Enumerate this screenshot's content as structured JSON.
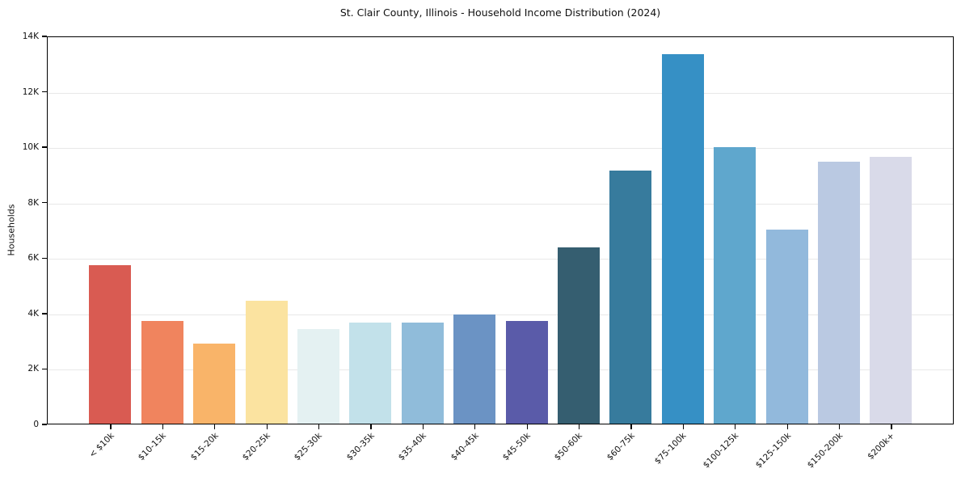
{
  "chart_data": {
    "type": "bar",
    "title": "St. Clair County, Illinois - Household Income Distribution (2024)",
    "xlabel": "",
    "ylabel": "Households",
    "ylim": [
      0,
      14000
    ],
    "grid": "horizontal-light",
    "legend": "none",
    "ytick_labels": [
      "0",
      "2K",
      "4K",
      "6K",
      "8K",
      "10K",
      "12K",
      "14K"
    ],
    "ytick_values": [
      0,
      2000,
      4000,
      6000,
      8000,
      10000,
      12000,
      14000
    ],
    "categories": [
      "< $10k",
      "$10-15k",
      "$15-20k",
      "$20-25k",
      "$25-30k",
      "$30-35k",
      "$35-40k",
      "$40-45k",
      "$45-50k",
      "$50-60k",
      "$60-75k",
      "$75-100k",
      "$100-125k",
      "$125-150k",
      "$150-200k",
      "$200k+"
    ],
    "values": [
      5720,
      3700,
      2890,
      4430,
      3420,
      3640,
      3640,
      3930,
      3710,
      6350,
      9120,
      13340,
      9990,
      7000,
      9440,
      9630
    ],
    "bar_colors": [
      "#d95b52",
      "#f0845e",
      "#f9b469",
      "#fbe3a0",
      "#e4f1f2",
      "#c2e1ea",
      "#90bcda",
      "#6b93c4",
      "#5a5ba9",
      "#355e70",
      "#377b9d",
      "#3690c5",
      "#5fa7cd",
      "#92b9dc",
      "#bac9e2",
      "#d9dae9"
    ]
  }
}
